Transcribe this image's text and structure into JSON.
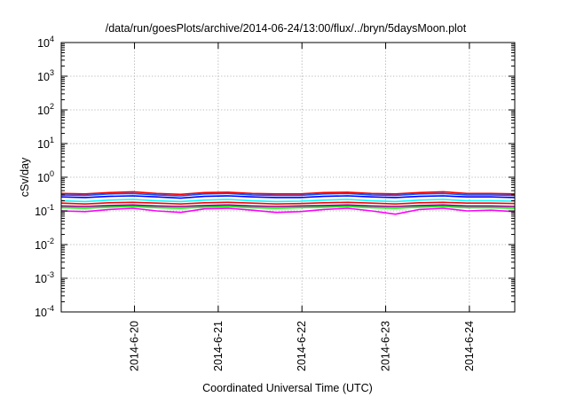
{
  "chart_data": {
    "type": "line",
    "title": "/data/run/goesPlots/archive/2014-06-24/13:00/flux/../bryn/5daysMoon.plot",
    "xlabel": "Coordinated Universal Time (UTC)",
    "ylabel": "cSv/day",
    "y_scale": "log",
    "ylim": [
      0.0001,
      10000
    ],
    "y_ticks": [
      {
        "value": 0.0001,
        "base": "10",
        "exp": "-4"
      },
      {
        "value": 0.001,
        "base": "10",
        "exp": "-3"
      },
      {
        "value": 0.01,
        "base": "10",
        "exp": "-2"
      },
      {
        "value": 0.1,
        "base": "10",
        "exp": "-1"
      },
      {
        "value": 1,
        "base": "10",
        "exp": "0"
      },
      {
        "value": 10,
        "base": "10",
        "exp": "1"
      },
      {
        "value": 100,
        "base": "10",
        "exp": "2"
      },
      {
        "value": 1000,
        "base": "10",
        "exp": "3"
      },
      {
        "value": 10000,
        "base": "10",
        "exp": "4"
      }
    ],
    "xlim": [
      "2014-06-19 03:00",
      "2014-06-24 13:00"
    ],
    "x_ticks": [
      "2014-6-20",
      "2014-6-21",
      "2014-6-22",
      "2014-6-23",
      "2014-6-24"
    ],
    "grid": true,
    "legend": "none",
    "series": [
      {
        "color": "#ff00ff",
        "values": [
          0.1,
          0.095,
          0.11,
          0.12,
          0.1,
          0.09,
          0.115,
          0.12,
          0.105,
          0.09,
          0.095,
          0.11,
          0.12,
          0.1,
          0.08,
          0.11,
          0.12,
          0.1,
          0.105,
          0.095
        ]
      },
      {
        "color": "#00ff00",
        "values": [
          0.125,
          0.12,
          0.13,
          0.135,
          0.125,
          0.12,
          0.13,
          0.135,
          0.125,
          0.12,
          0.125,
          0.13,
          0.135,
          0.125,
          0.12,
          0.13,
          0.135,
          0.125,
          0.125,
          0.12
        ]
      },
      {
        "color": "#7f007f",
        "values": [
          0.14,
          0.135,
          0.145,
          0.15,
          0.14,
          0.135,
          0.145,
          0.15,
          0.14,
          0.135,
          0.14,
          0.145,
          0.15,
          0.14,
          0.135,
          0.145,
          0.15,
          0.14,
          0.14,
          0.135
        ]
      },
      {
        "color": "#ff0000",
        "values": [
          0.17,
          0.16,
          0.175,
          0.18,
          0.17,
          0.16,
          0.175,
          0.18,
          0.17,
          0.16,
          0.165,
          0.175,
          0.18,
          0.17,
          0.16,
          0.175,
          0.18,
          0.17,
          0.17,
          0.165
        ]
      },
      {
        "color": "#00ffff",
        "values": [
          0.2,
          0.19,
          0.21,
          0.22,
          0.2,
          0.19,
          0.21,
          0.22,
          0.2,
          0.19,
          0.195,
          0.21,
          0.22,
          0.2,
          0.19,
          0.21,
          0.22,
          0.2,
          0.2,
          0.195
        ]
      },
      {
        "color": "#0000ff",
        "values": [
          0.26,
          0.25,
          0.27,
          0.28,
          0.26,
          0.24,
          0.27,
          0.28,
          0.26,
          0.25,
          0.25,
          0.27,
          0.28,
          0.26,
          0.25,
          0.27,
          0.28,
          0.26,
          0.26,
          0.25
        ]
      },
      {
        "color": "#0055ff",
        "values": [
          0.3,
          0.29,
          0.32,
          0.33,
          0.3,
          0.28,
          0.32,
          0.33,
          0.3,
          0.29,
          0.29,
          0.32,
          0.33,
          0.3,
          0.29,
          0.32,
          0.33,
          0.3,
          0.3,
          0.29
        ]
      },
      {
        "color": "#ff0000",
        "values": [
          0.33,
          0.32,
          0.35,
          0.37,
          0.33,
          0.31,
          0.35,
          0.36,
          0.33,
          0.32,
          0.32,
          0.35,
          0.36,
          0.33,
          0.32,
          0.35,
          0.37,
          0.33,
          0.33,
          0.32
        ]
      }
    ]
  }
}
